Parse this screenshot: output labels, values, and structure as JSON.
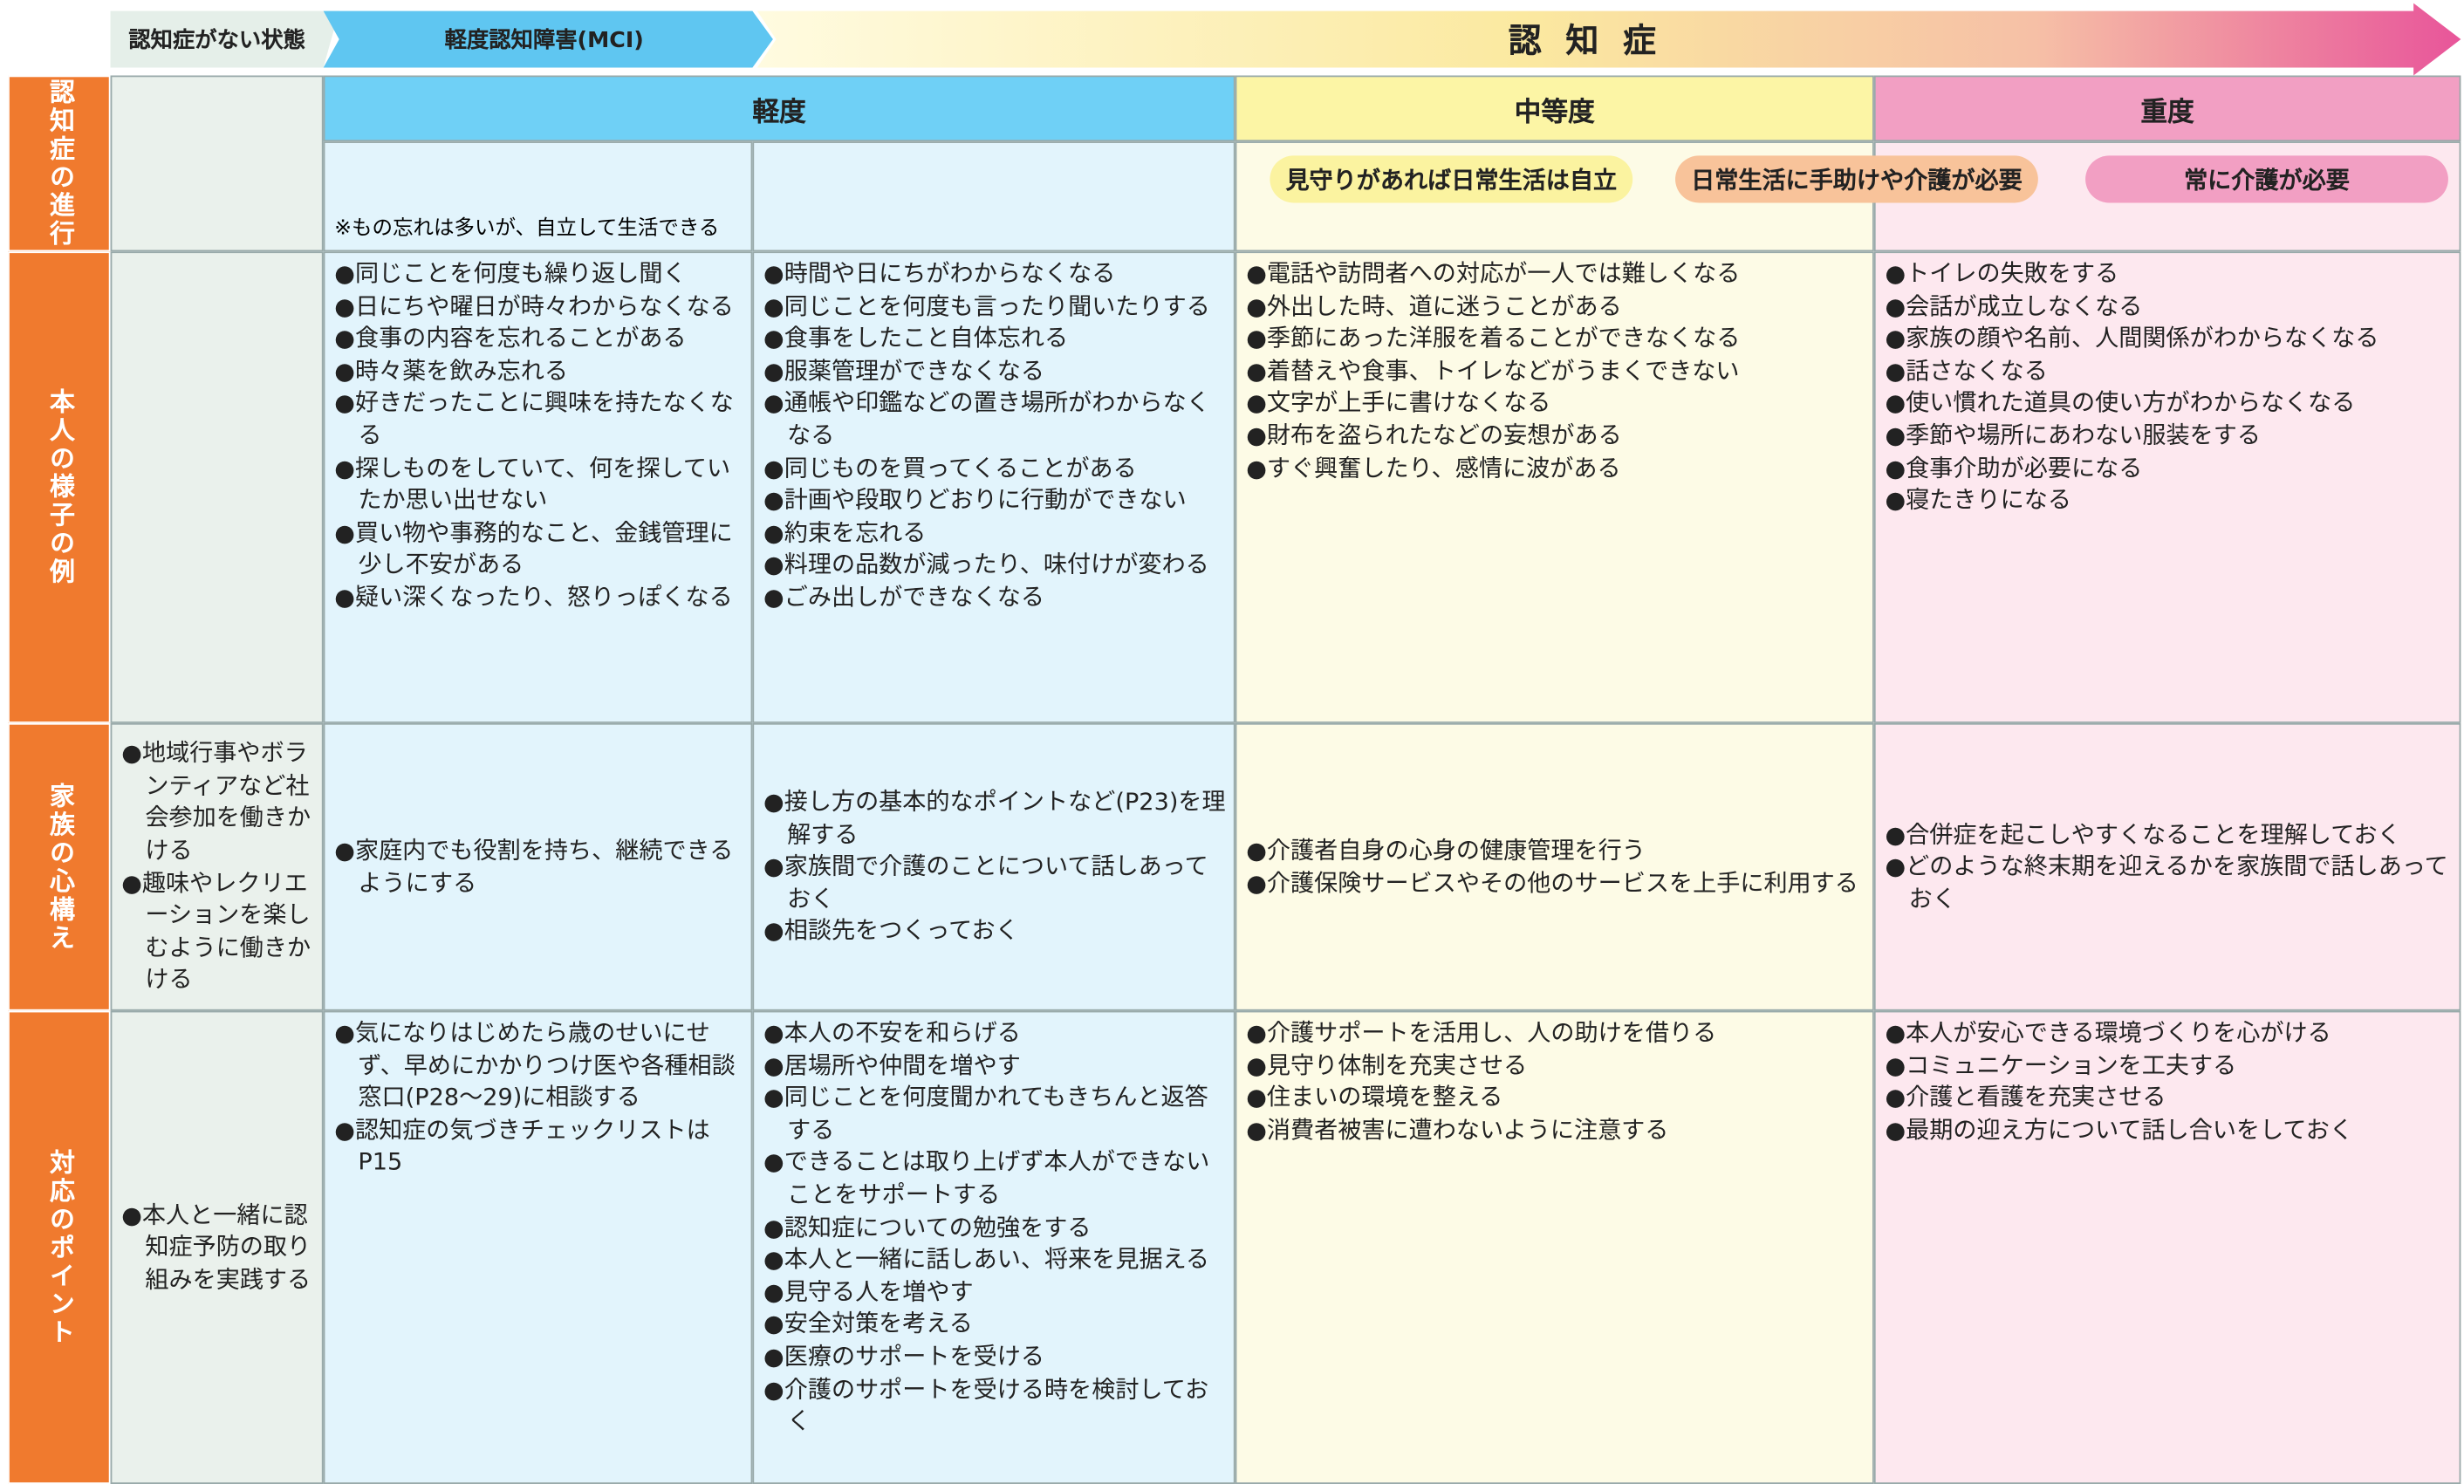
{
  "stages": [
    "認知症がない状態",
    "軽度認知障害(MCI)",
    "認 知 症"
  ],
  "severity": [
    "軽度",
    "中等度",
    "重度"
  ],
  "progression_label": "認知症の進行",
  "mci_note": "※もの忘れは多いが、自立して生活できる",
  "care_levels": [
    "見守りがあれば日常生活は自立",
    "日常生活に手助けや介護が必要",
    "常に介護が必要"
  ],
  "rows": [
    {
      "label": "本人の様子の例",
      "cells": [
        [],
        [
          "●同じことを何度も繰り返し聞く",
          "●日にちや曜日が時々わからなくなる",
          "●食事の内容を忘れることがある",
          "●時々薬を飲み忘れる",
          "●好きだったことに興味を持たなくなる",
          "●探しものをしていて、何を探していたか思い出せない",
          "●買い物や事務的なこと、金銭管理に少し不安がある",
          "●疑い深くなったり、怒りっぽくなる"
        ],
        [
          "●時間や日にちがわからなくなる",
          "●同じことを何度も言ったり聞いたりする",
          "●食事をしたこと自体忘れる",
          "●服薬管理ができなくなる",
          "●通帳や印鑑などの置き場所がわからなくなる",
          "●同じものを買ってくることがある",
          "●計画や段取りどおりに行動ができない",
          "●約束を忘れる",
          "●料理の品数が減ったり、味付けが変わる",
          "●ごみ出しができなくなる"
        ],
        [
          "●電話や訪問者への対応が一人では難しくなる",
          "●外出した時、道に迷うことがある",
          "●季節にあった洋服を着ることができなくなる",
          "●着替えや食事、トイレなどがうまくできない",
          "●文字が上手に書けなくなる",
          "●財布を盗られたなどの妄想がある",
          "●すぐ興奮したり、感情に波がある"
        ],
        [
          "●トイレの失敗をする",
          "●会話が成立しなくなる",
          "●家族の顔や名前、人間関係がわからなくなる",
          "●話さなくなる",
          "●使い慣れた道具の使い方がわからなくなる",
          "●季節や場所にあわない服装をする",
          "●食事介助が必要になる",
          "●寝たきりになる"
        ]
      ]
    },
    {
      "label": "家族の心構え",
      "cells": [
        [
          "●地域行事やボランティアなど社会参加を働きかける",
          "●趣味やレクリエーションを楽しむように働きかける"
        ],
        [
          "●家庭内でも役割を持ち、継続できるようにする"
        ],
        [
          "●接し方の基本的なポイントなど(P23)を理解する",
          "●家族間で介護のことについて話しあっておく",
          "●相談先をつくっておく"
        ],
        [
          "●介護者自身の心身の健康管理を行う",
          "●介護保険サービスやその他のサービスを上手に利用する"
        ],
        [
          "●合併症を起こしやすくなることを理解しておく",
          "●どのような終末期を迎えるかを家族間で話しあっておく"
        ]
      ]
    },
    {
      "label": "対応のポイント",
      "cells": [
        [
          "●本人と一緒に認知症予防の取り組みを実践する"
        ],
        [
          "●気になりはじめたら歳のせいにせず、早めにかかりつけ医や各種相談窓口(P28～29)に相談する",
          "●認知症の気づきチェックリストはP15"
        ],
        [
          "●本人の不安を和らげる",
          "●居場所や仲間を増やす",
          "●同じことを何度聞かれてもきちんと返答する",
          "●できることは取り上げず本人ができないことをサポートする",
          "●認知症についての勉強をする",
          "●本人と一緒に話しあい、将来を見据える",
          "●見守る人を増やす",
          "●安全対策を考える",
          "●医療のサポートを受ける",
          "●介護のサポートを受ける時を検討しておく"
        ],
        [
          "●介護サポートを活用し、人の助けを借りる",
          "●見守り体制を充実させる",
          "●住まいの環境を整える",
          "●消費者被害に遭わないように注意する"
        ],
        [
          "●本人が安心できる環境づくりを心がける",
          "●コミュニケーションを工夫する",
          "●介護と看護を充実させる",
          "●最期の迎え方について話し合いをしておく"
        ]
      ]
    }
  ]
}
